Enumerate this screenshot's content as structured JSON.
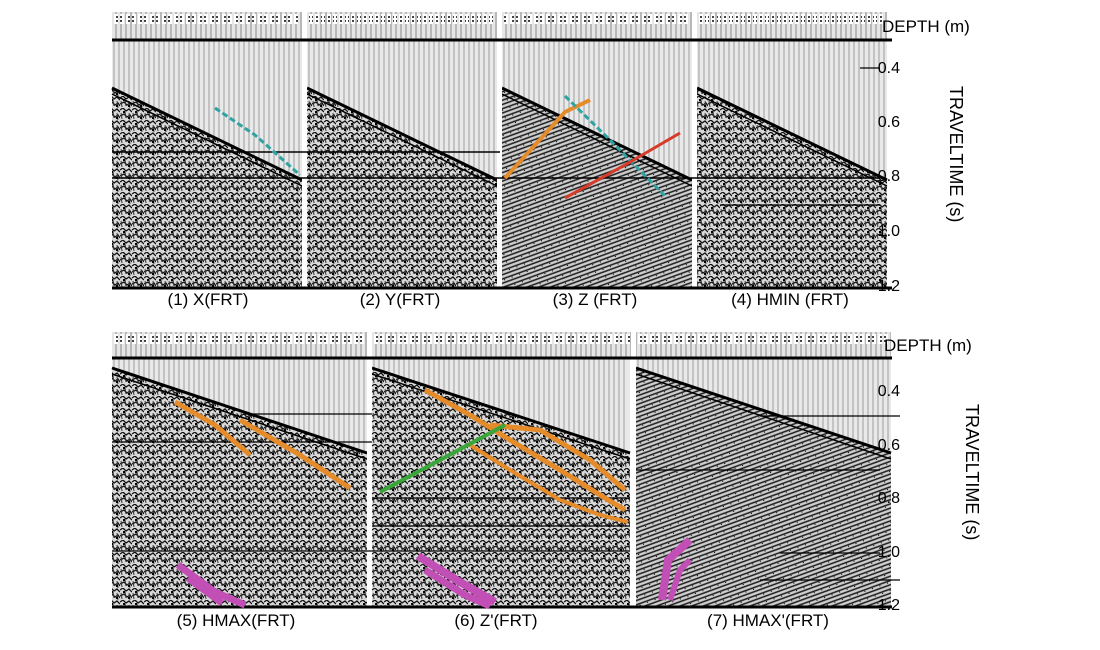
{
  "figure": {
    "top": {
      "depth_label": "DEPTH (m)",
      "axis_title": "TRAVELTIME (s)",
      "ticks": [
        "0.4",
        "0.6",
        "0.8",
        "1.0",
        "1.2"
      ],
      "panels": [
        {
          "caption": "(1)  X(FRT)",
          "picks": [
            {
              "color": "#2fa3a3"
            }
          ]
        },
        {
          "caption": "(2)  Y(FRT)",
          "picks": []
        },
        {
          "caption": "(3)  Z (FRT)",
          "picks": [
            {
              "color": "#e58b2a"
            },
            {
              "color": "#2fa3a3"
            },
            {
              "color": "#d63b2a"
            }
          ]
        },
        {
          "caption": "(4)  HMIN (FRT)",
          "picks": []
        }
      ]
    },
    "bottom": {
      "depth_label": "DEPTH (m)",
      "axis_title": "TRAVELTIME (s)",
      "ticks": [
        "0.4",
        "0.6",
        "0.8",
        "1.0",
        "1.2"
      ],
      "panels": [
        {
          "caption": "(5) HMAX(FRT)",
          "picks": [
            {
              "color": "#e58b2a"
            },
            {
              "color": "#c24fb5"
            }
          ]
        },
        {
          "caption": "(6)  Z'(FRT)",
          "picks": [
            {
              "color": "#e58b2a"
            },
            {
              "color": "#3aa63a"
            },
            {
              "color": "#c24fb5"
            }
          ]
        },
        {
          "caption": "(7)  HMAX'(FRT)",
          "picks": [
            {
              "color": "#c24fb5"
            }
          ]
        }
      ]
    }
  },
  "colors": {
    "orange_pick": "#e58b2a",
    "cyan_pick": "#2fa3a3",
    "red_pick": "#d63b2a",
    "green_pick": "#3aa63a",
    "magenta_pick": "#c24fb5"
  }
}
